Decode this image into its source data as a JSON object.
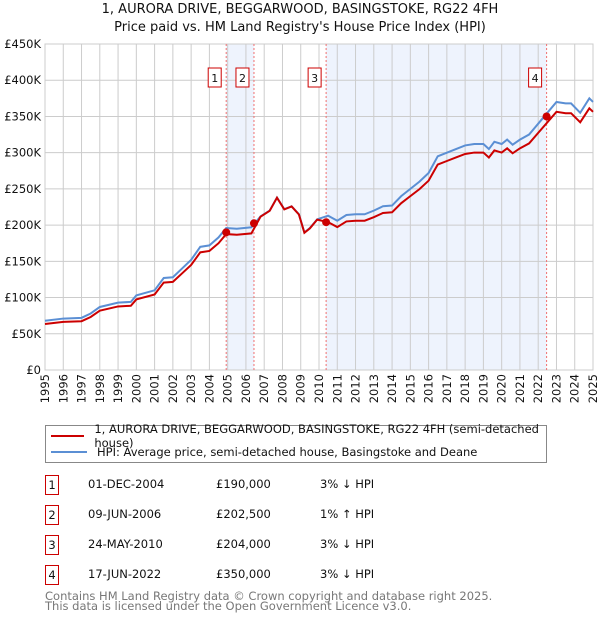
{
  "title_line1": "1, AURORA DRIVE, BEGGARWOOD, BASINGSTOKE, RG22 4FH",
  "title_line2": "Price paid vs. HM Land Registry's House Price Index (HPI)",
  "legend": {
    "property": "1, AURORA DRIVE, BEGGARWOOD, BASINGSTOKE, RG22 4FH (semi-detached house)",
    "hpi": "HPI: Average price, semi-detached house, Basingstoke and Deane"
  },
  "colors": {
    "property": "#cc0000",
    "hpi": "#5b8fd4",
    "shade": "#eef3fd"
  },
  "sales": [
    {
      "num": "1",
      "date": "01-DEC-2004",
      "price": "£190,000",
      "hpi": "3% ↓ HPI",
      "year": 2004.92,
      "value": 190000
    },
    {
      "num": "2",
      "date": "09-JUN-2006",
      "price": "£202,500",
      "hpi": "1% ↑ HPI",
      "year": 2006.44,
      "value": 202500
    },
    {
      "num": "3",
      "date": "24-MAY-2010",
      "price": "£204,000",
      "hpi": "3% ↓ HPI",
      "year": 2010.39,
      "value": 204000
    },
    {
      "num": "4",
      "date": "17-JUN-2022",
      "price": "£350,000",
      "hpi": "3% ↓ HPI",
      "year": 2022.46,
      "value": 350000
    }
  ],
  "footer": {
    "line1": "Contains HM Land Registry data © Crown copyright and database right 2025.",
    "line2": "This data is licensed under the Open Government Licence v3.0."
  },
  "chart_data": {
    "type": "line",
    "xlim": [
      1995,
      2025
    ],
    "ylim": [
      0,
      450000
    ],
    "x_ticks": [
      "1995",
      "1996",
      "1997",
      "1998",
      "1999",
      "2000",
      "2001",
      "2002",
      "2003",
      "2004",
      "2005",
      "2006",
      "2007",
      "2008",
      "2009",
      "2010",
      "2011",
      "2012",
      "2013",
      "2014",
      "2015",
      "2016",
      "2017",
      "2018",
      "2019",
      "2020",
      "2021",
      "2022",
      "2023",
      "2024",
      "2025"
    ],
    "y_ticks": [
      {
        "v": 0,
        "label": "£0"
      },
      {
        "v": 50000,
        "label": "£50K"
      },
      {
        "v": 100000,
        "label": "£100K"
      },
      {
        "v": 150000,
        "label": "£150K"
      },
      {
        "v": 200000,
        "label": "£200K"
      },
      {
        "v": 250000,
        "label": "£250K"
      },
      {
        "v": 300000,
        "label": "£300K"
      },
      {
        "v": 350000,
        "label": "£350K"
      },
      {
        "v": 400000,
        "label": "£400K"
      },
      {
        "v": 450000,
        "label": "£450K"
      }
    ],
    "grid": true,
    "shaded_ranges": [
      [
        2004.92,
        2006.44
      ],
      [
        2010.39,
        2022.46
      ]
    ],
    "series": [
      {
        "name": "HPI",
        "x": [
          1995,
          1996,
          1997,
          1997.5,
          1998,
          1999,
          1999.7,
          2000,
          2001,
          2001.5,
          2002,
          2002.5,
          2003,
          2003.5,
          2004,
          2004.5,
          2004.92,
          2005.5,
          2006.3,
          2006.8,
          2007.3,
          2007.7,
          2008.1,
          2008.5,
          2008.9,
          2009.2,
          2009.5,
          2009.9,
          2010.5,
          2011,
          2011.5,
          2012,
          2012.5,
          2013,
          2013.5,
          2014,
          2014.5,
          2015,
          2015.5,
          2016,
          2016.5,
          2017,
          2017.5,
          2018,
          2018.5,
          2019,
          2019.3,
          2019.6,
          2020,
          2020.3,
          2020.6,
          2021,
          2021.5,
          2022,
          2022.5,
          2023,
          2023.5,
          2023.8,
          2024.3,
          2024.8,
          2025
        ],
        "values": [
          68000,
          71000,
          72000,
          78000,
          87000,
          93000,
          94000,
          103000,
          110000,
          127000,
          128000,
          140000,
          152000,
          170000,
          172000,
          183000,
          196000,
          195000,
          197000,
          212000,
          220000,
          238000,
          222000,
          226000,
          215000,
          190000,
          196000,
          208000,
          213000,
          206000,
          214000,
          215000,
          215000,
          220000,
          226000,
          227000,
          240000,
          250000,
          260000,
          272000,
          295000,
          300000,
          305000,
          310000,
          312000,
          312000,
          305000,
          315000,
          312000,
          318000,
          311000,
          318000,
          325000,
          340000,
          355000,
          370000,
          368000,
          368000,
          355000,
          375000,
          370000
        ]
      },
      {
        "name": "1, AURORA DRIVE (price paid, indexed)",
        "factors": [
          0.97,
          1.01,
          0.97,
          0.97
        ]
      }
    ]
  }
}
